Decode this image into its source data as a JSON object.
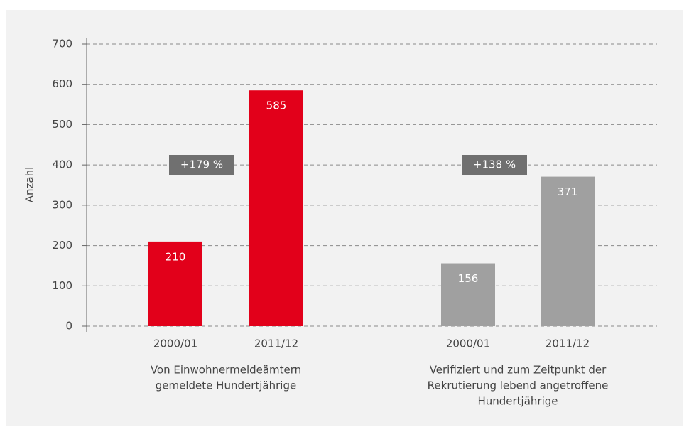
{
  "chart_data": {
    "type": "bar",
    "ylabel": "Anzahl",
    "ylim": [
      0,
      700
    ],
    "yticks": [
      0,
      100,
      200,
      300,
      400,
      500,
      600,
      700
    ],
    "grid": true,
    "groups": [
      {
        "label_lines": [
          "Von Einwohnermeldeämtern",
          "gemeldete Hundertjährige"
        ],
        "categories": [
          "2000/01",
          "2011/12"
        ],
        "values": [
          210,
          585
        ],
        "color": "#e2001a",
        "annotation": "+179 %"
      },
      {
        "label_lines": [
          "Verifiziert und zum Zeitpunkt der",
          "Rekrutierung lebend angetroffene",
          "Hundertjährige"
        ],
        "categories": [
          "2000/01",
          "2011/12"
        ],
        "values": [
          156,
          371
        ],
        "color": "#a0a0a0",
        "annotation": "+138 %"
      }
    ]
  }
}
